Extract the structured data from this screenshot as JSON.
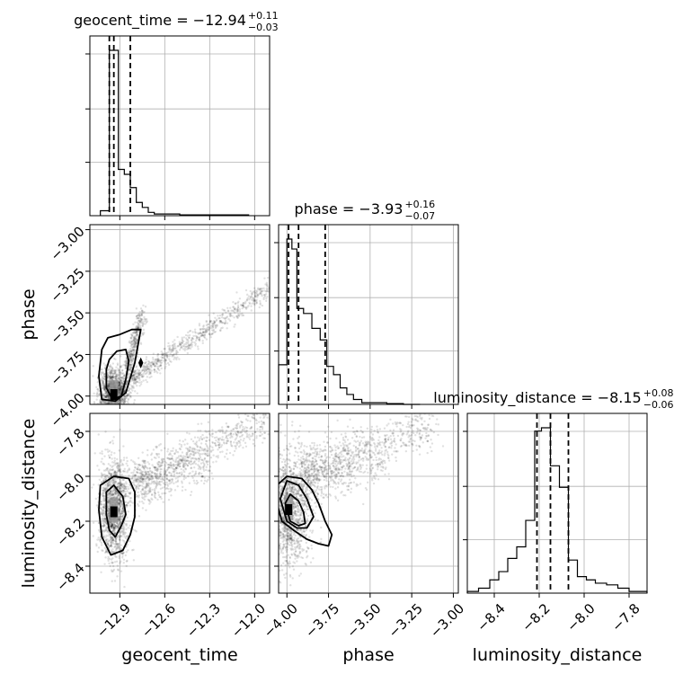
{
  "chart_data": {
    "type": "corner",
    "parameters": [
      "geocent_time",
      "phase",
      "luminosity_distance"
    ],
    "grid": true,
    "axes": {
      "geocent_time": {
        "range": [
          -13.1,
          -11.9
        ],
        "ticks": [
          -12.9,
          -12.6,
          -12.3,
          -12.0
        ],
        "tick_labels": [
          "−12.9",
          "−12.6",
          "−12.3",
          "−12.0"
        ]
      },
      "phase": {
        "range": [
          -4.05,
          -2.97
        ],
        "ticks": [
          -4.0,
          -3.75,
          -3.5,
          -3.25,
          -3.0
        ],
        "tick_labels": [
          "−4.00",
          "−3.75",
          "−3.50",
          "−3.25",
          "−3.00"
        ]
      },
      "luminosity_distance": {
        "range": [
          -8.52,
          -7.72
        ],
        "ticks": [
          -8.4,
          -8.2,
          -8.0,
          -7.8
        ],
        "tick_labels": [
          "−8.4",
          "−8.2",
          "−8.0",
          "−7.8"
        ]
      }
    },
    "histograms": [
      {
        "parameter": "geocent_time",
        "title_main": "geocent_time = −12.94",
        "title_plus": "+0.11",
        "title_minus": "−0.03",
        "quantiles": [
          -12.97,
          -12.94,
          -12.83
        ],
        "bin_edges": [
          -13.03,
          -12.97,
          -12.95,
          -12.91,
          -12.87,
          -12.83,
          -12.79,
          -12.75,
          -12.71,
          -12.67,
          -12.6,
          -12.5,
          -12.3,
          -12.04
        ],
        "counts": [
          3,
          100,
          100,
          28,
          25,
          17,
          8,
          5,
          2,
          1,
          1,
          0.5,
          0.5
        ]
      },
      {
        "parameter": "phase",
        "title_main": "phase = −3.93",
        "title_plus": "+0.16",
        "title_minus": "−0.07",
        "quantiles": [
          -3.99,
          -3.93,
          -3.77
        ],
        "bin_edges": [
          -4.05,
          -4.0,
          -3.97,
          -3.94,
          -3.9,
          -3.85,
          -3.8,
          -3.76,
          -3.72,
          -3.68,
          -3.64,
          -3.6,
          -3.55,
          -3.5,
          -3.4,
          -3.3,
          -3.2
        ],
        "counts": [
          24,
          100,
          94,
          58,
          55,
          46,
          39,
          23,
          18,
          10,
          6,
          3,
          1,
          1,
          0.5,
          0
        ]
      },
      {
        "parameter": "luminosity_distance",
        "title_main": "luminosity_distance = −8.15",
        "title_plus": "+0.08",
        "title_minus": "−0.06",
        "quantiles": [
          -8.21,
          -8.15,
          -8.07
        ],
        "bin_edges": [
          -8.52,
          -8.47,
          -8.42,
          -8.38,
          -8.34,
          -8.3,
          -8.26,
          -8.22,
          -8.19,
          -8.15,
          -8.11,
          -8.07,
          -8.03,
          -7.99,
          -7.95,
          -7.9,
          -7.85,
          -7.8,
          -7.72
        ],
        "counts": [
          1,
          3,
          8,
          13,
          21,
          28,
          44,
          98,
          100,
          77,
          64,
          20,
          10,
          8,
          6,
          5,
          3,
          1
        ]
      }
    ],
    "joint": [
      {
        "x": "geocent_time",
        "y": "phase",
        "mode": {
          "x": -12.94,
          "y": -3.98
        },
        "spread": {
          "x": 0.035,
          "y": 0.05
        },
        "trend": {
          "from": [
            -12.82,
            -3.9
          ],
          "to": [
            -11.9,
            -3.35
          ]
        },
        "trend2": {
          "from": [
            -12.85,
            -3.85
          ],
          "to": [
            -12.75,
            -3.5
          ]
        },
        "contours": [
          [
            -12.99,
            -3.84,
            -12.97,
            -3.78,
            -12.92,
            -3.73,
            -12.86,
            -3.72,
            -12.84,
            -3.79,
            -12.86,
            -3.9,
            -12.89,
            -4.0,
            -12.95,
            -4.02,
            -12.99,
            -3.95
          ],
          [
            -13.02,
            -3.72,
            -12.98,
            -3.65,
            -12.9,
            -3.63,
            -12.82,
            -3.6,
            -12.76,
            -3.6,
            -12.8,
            -3.8,
            -12.86,
            -3.98,
            -12.93,
            -4.03,
            -13.02,
            -4.02,
            -13.04,
            -3.88
          ]
        ],
        "inner": [
          -12.76,
          -3.78,
          -12.75,
          -3.8,
          -12.76,
          -3.82,
          -12.77,
          -3.8
        ]
      },
      {
        "x": "geocent_time",
        "y": "luminosity_distance",
        "mode": {
          "x": -12.94,
          "y": -8.15
        },
        "spread": {
          "x": 0.035,
          "y": 0.08
        },
        "trend": {
          "from": [
            -12.8,
            -8.02
          ],
          "to": [
            -11.9,
            -7.74
          ]
        },
        "trend2": {
          "from": [
            -12.8,
            -8.05
          ],
          "to": [
            -12.3,
            -7.95
          ]
        },
        "contours": [
          [
            -12.99,
            -8.07,
            -12.94,
            -8.04,
            -12.88,
            -8.09,
            -12.86,
            -8.17,
            -12.89,
            -8.22,
            -12.93,
            -8.27,
            -12.97,
            -8.24,
            -12.99,
            -8.17
          ],
          [
            -13.03,
            -8.04,
            -12.94,
            -8.0,
            -12.84,
            -8.01,
            -12.8,
            -8.07,
            -12.8,
            -8.18,
            -12.83,
            -8.26,
            -12.88,
            -8.33,
            -12.96,
            -8.35,
            -13.02,
            -8.27,
            -13.04,
            -8.15
          ]
        ]
      },
      {
        "x": "phase",
        "y": "luminosity_distance",
        "mode": {
          "x": -3.99,
          "y": -8.14
        },
        "spread": {
          "x": 0.05,
          "y": 0.09
        },
        "trend": {
          "from": [
            -3.9,
            -7.98
          ],
          "to": [
            -3.1,
            -7.76
          ]
        },
        "trend2": {
          "from": [
            -3.9,
            -8.02
          ],
          "to": [
            -3.4,
            -7.93
          ]
        },
        "contours": [
          [
            -4.01,
            -8.12,
            -3.98,
            -8.08,
            -3.93,
            -8.11,
            -3.9,
            -8.16,
            -3.89,
            -8.21,
            -3.93,
            -8.22,
            -3.98,
            -8.2
          ],
          [
            -4.04,
            -8.1,
            -4.0,
            -8.02,
            -3.93,
            -8.04,
            -3.88,
            -8.1,
            -3.84,
            -8.18,
            -3.88,
            -8.23,
            -3.94,
            -8.23,
            -4.0,
            -8.2
          ],
          [
            -4.06,
            -8.04,
            -4.0,
            -8.0,
            -3.91,
            -8.01,
            -3.85,
            -8.06,
            -3.81,
            -8.12,
            -3.77,
            -8.2,
            -3.73,
            -8.26,
            -3.75,
            -8.31,
            -3.81,
            -8.3,
            -3.88,
            -8.28,
            -3.96,
            -8.24,
            -4.03,
            -8.2,
            -4.06,
            -8.12
          ]
        ]
      }
    ]
  }
}
